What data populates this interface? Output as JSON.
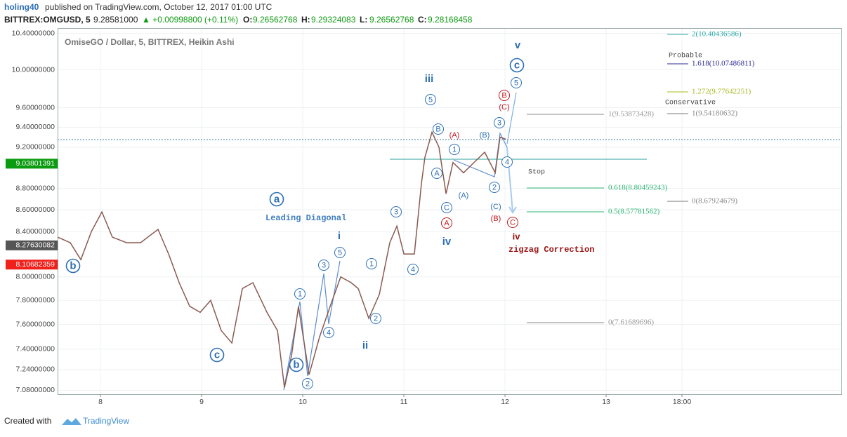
{
  "header": {
    "author": "holing40",
    "published": "published on TradingView.com, October 12, 2017 01:00 UTC",
    "symbol": "BITTREX:OMGUSD, 5",
    "price": "9.28581000",
    "change": "▲ +0.00998800 (+0.11%)",
    "ohlc": [
      {
        "label": "O:",
        "value": "9.26562768"
      },
      {
        "label": "H:",
        "value": "9.29324083"
      },
      {
        "label": "L:",
        "value": "9.26562768"
      },
      {
        "label": "C:",
        "value": "9.28168458"
      }
    ]
  },
  "footer": {
    "created": "Created with",
    "brand": "TradingView"
  },
  "chart_data": {
    "type": "line",
    "title": "OmiseGO / Dollar, 5, BITTREX, Heikin Ashi",
    "log_scale": true,
    "grid": true,
    "color": "#8a5a50",
    "x": [
      7.576,
      7.701,
      7.806,
      7.91,
      8.014,
      8.118,
      8.257,
      8.396,
      8.569,
      8.674,
      8.778,
      8.882,
      8.986,
      9.09,
      9.194,
      9.299,
      9.403,
      9.507,
      9.646,
      9.75,
      9.819,
      9.889,
      9.958,
      10.063,
      10.167,
      10.271,
      10.375,
      10.479,
      10.549,
      10.653,
      10.757,
      10.861,
      10.931,
      11.0,
      11.104,
      11.174,
      11.208,
      11.278,
      11.347,
      11.417,
      11.486,
      11.59,
      11.694,
      11.799,
      11.903,
      11.951,
      12.007
    ],
    "values": [
      8.35,
      8.3,
      8.15,
      8.4,
      8.58,
      8.35,
      8.3,
      8.3,
      8.42,
      8.2,
      7.95,
      7.75,
      7.7,
      7.8,
      7.55,
      7.45,
      7.9,
      7.95,
      7.7,
      7.55,
      7.1,
      7.35,
      7.75,
      7.2,
      7.5,
      7.75,
      8.0,
      7.95,
      7.9,
      7.65,
      7.85,
      8.3,
      8.45,
      8.2,
      8.2,
      8.85,
      9.1,
      9.35,
      9.2,
      8.75,
      9.05,
      8.95,
      9.05,
      9.15,
      8.95,
      9.3,
      9.28
    ],
    "xlim": [
      7.576,
      15.326
    ],
    "ylim": [
      7.05,
      10.46
    ],
    "xticks": [
      8,
      9,
      10,
      11,
      12,
      13,
      {
        "value": 13.75,
        "label": "18:00"
      }
    ],
    "yticks": [
      {
        "value": 10.4,
        "label": "10.40000000"
      },
      {
        "value": 10.0,
        "label": "10.00000000"
      },
      {
        "value": 9.6,
        "label": "9.60000000"
      },
      {
        "value": 9.4,
        "label": "9.40000000"
      },
      {
        "value": 9.2,
        "label": "9.20000000"
      },
      {
        "value": 8.8,
        "label": "8.80000000"
      },
      {
        "value": 8.6,
        "label": "8.60000000"
      },
      {
        "value": 8.4,
        "label": "8.40000000"
      },
      {
        "value": 8.0,
        "label": "8.00000000"
      },
      {
        "value": 7.8,
        "label": "7.80000000"
      },
      {
        "value": 7.6,
        "label": "7.60000000"
      },
      {
        "value": 7.4,
        "label": "7.40000000"
      },
      {
        "value": 7.24,
        "label": "7.24000000"
      },
      {
        "value": 7.08,
        "label": "7.08000000"
      }
    ],
    "price_markers": {
      "values": [
        9.03801391,
        8.27630082,
        8.10682359
      ],
      "colors": [
        "#0b9b10",
        "#555555",
        "#f0201a"
      ]
    },
    "annotations": [
      "b",
      "c",
      "b",
      "a",
      "1",
      "2",
      "3",
      "4",
      "5",
      "1",
      "2",
      "3",
      "4",
      "5",
      "B",
      "A",
      "C",
      "1",
      "2",
      "3",
      "4",
      "5",
      "c",
      "A",
      "B",
      "C",
      "Leading Diagonal",
      "i",
      "ii",
      "iii",
      "iv",
      "v",
      "(A)",
      "(C)",
      "(B)",
      "(A)",
      "(C)",
      "(B)",
      "iv",
      "zigzag Correction",
      "Stop",
      "Probable",
      "Conservative",
      "2(10.40436586)",
      "1.618(10.07486811)",
      "1.272(9.77642251)",
      "1(9.54180632)",
      "1(9.53873428)",
      "0.618(8.80459243)",
      "0.5(8.57781562)",
      "0(8.67924679)",
      "0(7.61689696)"
    ]
  }
}
